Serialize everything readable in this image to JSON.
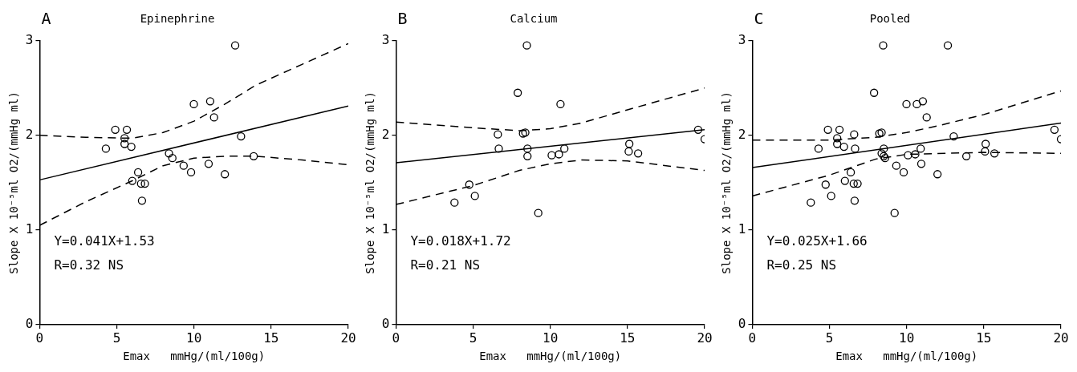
{
  "chart_data": [
    {
      "type": "scatter",
      "title": "Epinephrine",
      "xlabel": "Emax   mmHg/(ml/100g)",
      "ylabel": "Slope X 10⁻⁵ml O2/(mmHg ml)",
      "annotations": [
        "A",
        "Y=0.041X+1.53",
        "R=0.32 NS"
      ],
      "xlim": [
        0,
        20
      ],
      "ylim": [
        0,
        3
      ],
      "xticks": [
        0,
        5,
        10,
        15,
        20
      ],
      "yticks": [
        0,
        1,
        2,
        3
      ],
      "grid": false,
      "legend": false,
      "series": [
        {
          "marker": "circle",
          "color": "#000000",
          "x": [
            12.67,
            9.99,
            11.05,
            11.3,
            4.9,
            5.65,
            5.5,
            5.5,
            5.94,
            4.29,
            13.05,
            8.38,
            8.6,
            9.33,
            9.81,
            10.95,
            13.87,
            12.0,
            6.38,
            6.0,
            6.57,
            6.82,
            6.63
          ],
          "values": [
            2.95,
            2.33,
            2.36,
            2.19,
            2.06,
            2.06,
            1.97,
            1.91,
            1.88,
            1.86,
            1.99,
            1.81,
            1.76,
            1.68,
            1.61,
            1.7,
            1.78,
            1.59,
            1.61,
            1.52,
            1.49,
            1.49,
            1.31
          ]
        },
        {
          "type": "line",
          "color": "#000000",
          "line_style": "solid",
          "x": [
            0,
            20
          ],
          "values": [
            1.53,
            2.31
          ]
        },
        {
          "type": "line",
          "color": "#000000",
          "line_style": "dashed",
          "x": [
            0,
            3,
            6,
            8,
            10,
            12,
            14,
            17,
            20
          ],
          "values": [
            2.0,
            1.98,
            1.97,
            2.03,
            2.15,
            2.33,
            2.53,
            2.75,
            2.97
          ]
        },
        {
          "type": "line",
          "color": "#000000",
          "line_style": "dashed",
          "x": [
            0,
            3,
            6,
            8,
            10,
            12,
            14,
            17,
            20
          ],
          "values": [
            1.05,
            1.3,
            1.52,
            1.68,
            1.76,
            1.78,
            1.78,
            1.74,
            1.69
          ]
        }
      ]
    },
    {
      "type": "scatter",
      "title": "Calcium",
      "xlabel": "Emax   mmHg/(ml/100g)",
      "ylabel": "Slope X 10⁻⁵ml O2/(mmHg ml)",
      "annotations": [
        "B",
        "Y=0.018X+1.72",
        "R=0.21 NS"
      ],
      "xlim": [
        0,
        20
      ],
      "ylim": [
        0,
        3
      ],
      "xticks": [
        0,
        5,
        10,
        15,
        20
      ],
      "yticks": [
        0,
        1,
        2,
        3
      ],
      "grid": false,
      "legend": false,
      "series": [
        {
          "marker": "circle",
          "color": "#000000",
          "x": [
            8.48,
            7.89,
            10.66,
            6.6,
            8.23,
            8.38,
            6.66,
            8.52,
            8.52,
            10.09,
            10.56,
            10.91,
            15.12,
            15.08,
            15.69,
            19.58,
            20.0,
            4.75,
            5.11,
            3.79,
            9.22
          ],
          "values": [
            2.95,
            2.45,
            2.33,
            2.01,
            2.02,
            2.03,
            1.86,
            1.86,
            1.78,
            1.79,
            1.8,
            1.86,
            1.91,
            1.83,
            1.81,
            2.06,
            1.96,
            1.48,
            1.36,
            1.29,
            1.18
          ]
        },
        {
          "type": "line",
          "color": "#000000",
          "line_style": "solid",
          "x": [
            0,
            20
          ],
          "values": [
            1.71,
            2.06
          ]
        },
        {
          "type": "line",
          "color": "#000000",
          "line_style": "dashed",
          "x": [
            0,
            5,
            8,
            10,
            12,
            15,
            20
          ],
          "values": [
            2.14,
            2.08,
            2.05,
            2.07,
            2.13,
            2.27,
            2.5
          ]
        },
        {
          "type": "line",
          "color": "#000000",
          "line_style": "dashed",
          "x": [
            0,
            5,
            8,
            10,
            12,
            15,
            20
          ],
          "values": [
            1.27,
            1.47,
            1.63,
            1.7,
            1.74,
            1.73,
            1.63
          ]
        }
      ]
    },
    {
      "type": "scatter",
      "title": "Pooled",
      "xlabel": "Emax   mmHg/(ml/100g)",
      "ylabel": "Slope X 10⁻⁵ml O2/(mmHg ml)",
      "annotations": [
        "C",
        "Y=0.025X+1.66",
        "R=0.25 NS"
      ],
      "xlim": [
        0,
        20
      ],
      "ylim": [
        0,
        3
      ],
      "xticks": [
        0,
        5,
        10,
        15,
        20
      ],
      "yticks": [
        0,
        1,
        2,
        3
      ],
      "grid": false,
      "legend": false,
      "series": [
        {
          "marker": "circle",
          "color": "#000000",
          "x": [
            12.67,
            9.99,
            11.05,
            11.3,
            4.9,
            5.65,
            5.5,
            5.5,
            5.94,
            4.29,
            13.05,
            8.38,
            8.6,
            9.33,
            9.81,
            10.95,
            13.87,
            12.0,
            6.38,
            6.0,
            6.57,
            6.82,
            6.63,
            8.48,
            7.89,
            10.66,
            6.6,
            8.23,
            8.38,
            6.66,
            8.52,
            8.52,
            10.09,
            10.56,
            10.91,
            15.12,
            15.08,
            15.69,
            19.58,
            20.0,
            4.75,
            5.11,
            3.79,
            9.22
          ],
          "values": [
            2.95,
            2.33,
            2.36,
            2.19,
            2.06,
            2.06,
            1.97,
            1.91,
            1.88,
            1.86,
            1.99,
            1.81,
            1.76,
            1.68,
            1.61,
            1.7,
            1.78,
            1.59,
            1.61,
            1.52,
            1.49,
            1.49,
            1.31,
            2.95,
            2.45,
            2.33,
            2.01,
            2.02,
            2.03,
            1.86,
            1.86,
            1.78,
            1.79,
            1.8,
            1.86,
            1.91,
            1.83,
            1.81,
            2.06,
            1.96,
            1.48,
            1.36,
            1.29,
            1.18
          ]
        },
        {
          "type": "line",
          "color": "#000000",
          "line_style": "solid",
          "x": [
            0,
            20
          ],
          "values": [
            1.66,
            2.13
          ]
        },
        {
          "type": "line",
          "color": "#000000",
          "line_style": "dashed",
          "x": [
            0,
            5,
            8,
            10,
            12,
            15,
            20
          ],
          "values": [
            1.95,
            1.95,
            1.98,
            2.03,
            2.1,
            2.22,
            2.47
          ]
        },
        {
          "type": "line",
          "color": "#000000",
          "line_style": "dashed",
          "x": [
            0,
            5,
            8,
            10,
            15,
            20
          ],
          "values": [
            1.36,
            1.58,
            1.75,
            1.8,
            1.82,
            1.81
          ]
        }
      ]
    }
  ]
}
